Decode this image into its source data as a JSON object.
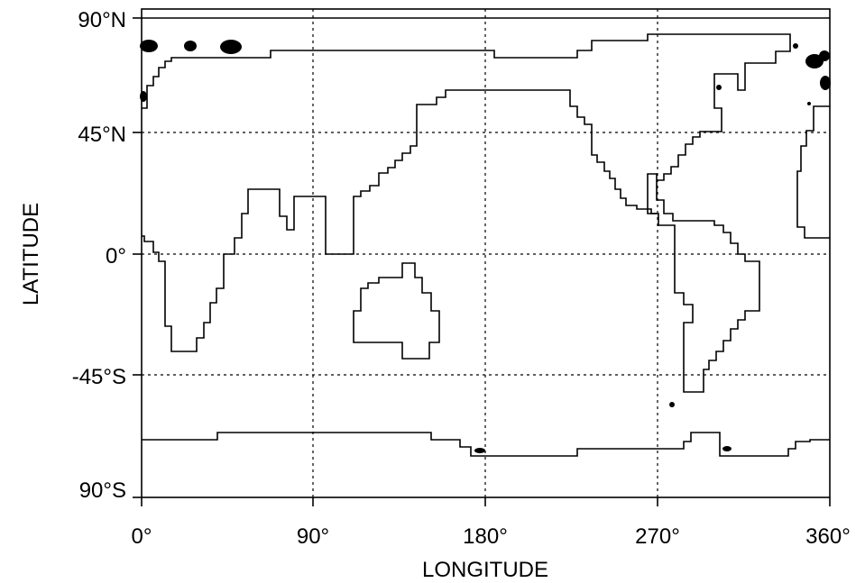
{
  "map": {
    "x_axis": {
      "title": "LONGITUDE",
      "range": [
        0,
        360
      ],
      "ticks": [
        {
          "value": 0,
          "label": "0°"
        },
        {
          "value": 90,
          "label": "90°"
        },
        {
          "value": 180,
          "label": "180°"
        },
        {
          "value": 270,
          "label": "270°"
        },
        {
          "value": 360,
          "label": "360°"
        }
      ]
    },
    "y_axis": {
      "title": "LATITUDE",
      "range": [
        -90,
        90
      ],
      "ticks": [
        {
          "value": 90,
          "label": "90°N"
        },
        {
          "value": 45,
          "label": "45°N"
        },
        {
          "value": 0,
          "label": "0°"
        },
        {
          "value": -45,
          "label": "-45°S"
        },
        {
          "value": -90,
          "label": "90°S"
        }
      ]
    },
    "grid": true,
    "line_color": "#000000",
    "background_color": "#ffffff"
  }
}
